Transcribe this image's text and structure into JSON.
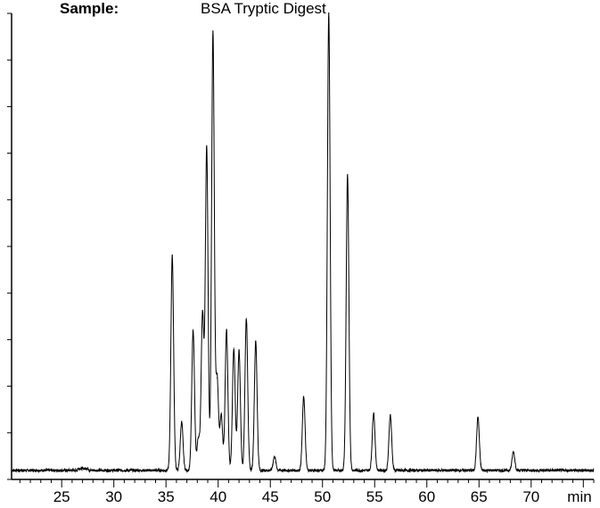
{
  "header": {
    "sample_label": "Sample:",
    "sample_value": "BSA Tryptic Digest"
  },
  "chart_data": {
    "type": "line",
    "title": "",
    "xlabel": "min",
    "ylabel": "",
    "xlim": [
      20.2,
      76.0
    ],
    "ylim": [
      0,
      100
    ],
    "x_ticks": [
      25,
      30,
      35,
      40,
      45,
      50,
      55,
      60,
      65,
      70
    ],
    "x_tick_labels": [
      "25",
      "30",
      "35",
      "40",
      "45",
      "50",
      "55",
      "60",
      "65",
      "70"
    ],
    "x_unit_label": "min",
    "y_tick_count": 10,
    "grid": false,
    "baseline": 1.0,
    "line_color": "#000000",
    "peaks": [
      {
        "x": 35.6,
        "y": 46.5
      },
      {
        "x": 36.5,
        "y": 10.5
      },
      {
        "x": 37.6,
        "y": 30.5
      },
      {
        "x": 38.1,
        "y": 7.0
      },
      {
        "x": 38.5,
        "y": 34.0
      },
      {
        "x": 38.9,
        "y": 70.0
      },
      {
        "x": 39.5,
        "y": 95.0
      },
      {
        "x": 39.9,
        "y": 20.0
      },
      {
        "x": 40.3,
        "y": 12.0
      },
      {
        "x": 40.8,
        "y": 30.5
      },
      {
        "x": 41.5,
        "y": 26.5
      },
      {
        "x": 42.0,
        "y": 26.0
      },
      {
        "x": 42.7,
        "y": 33.0
      },
      {
        "x": 43.6,
        "y": 28.0
      },
      {
        "x": 45.4,
        "y": 3.0
      },
      {
        "x": 48.2,
        "y": 16.0
      },
      {
        "x": 50.6,
        "y": 99.0
      },
      {
        "x": 52.4,
        "y": 64.0
      },
      {
        "x": 54.9,
        "y": 12.5
      },
      {
        "x": 56.5,
        "y": 12.0
      },
      {
        "x": 64.9,
        "y": 11.5
      },
      {
        "x": 68.3,
        "y": 4.0
      }
    ]
  }
}
